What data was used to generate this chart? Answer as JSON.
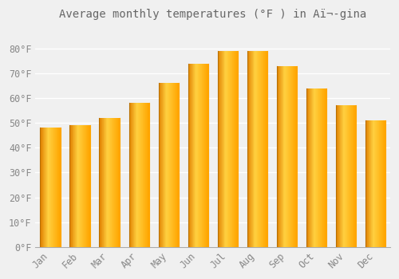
{
  "title": "Average monthly temperatures (°F ) in Aï¬­gina",
  "months": [
    "Jan",
    "Feb",
    "Mar",
    "Apr",
    "May",
    "Jun",
    "Jul",
    "Aug",
    "Sep",
    "Oct",
    "Nov",
    "Dec"
  ],
  "values": [
    48,
    49,
    52,
    58,
    66,
    74,
    79,
    79,
    73,
    64,
    57,
    51
  ],
  "bar_color_main": "#FFA500",
  "bar_color_light": "#FFD040",
  "bar_color_dark": "#E08000",
  "bar_color_edge": "#B87000",
  "background_color": "#F0F0F0",
  "grid_color": "#FFFFFF",
  "text_color": "#888888",
  "title_color": "#666666",
  "ylim": [
    0,
    88
  ],
  "yticks": [
    0,
    10,
    20,
    30,
    40,
    50,
    60,
    70,
    80
  ],
  "ytick_labels": [
    "0°F",
    "10°F",
    "20°F",
    "30°F",
    "40°F",
    "50°F",
    "60°F",
    "70°F",
    "80°F"
  ]
}
